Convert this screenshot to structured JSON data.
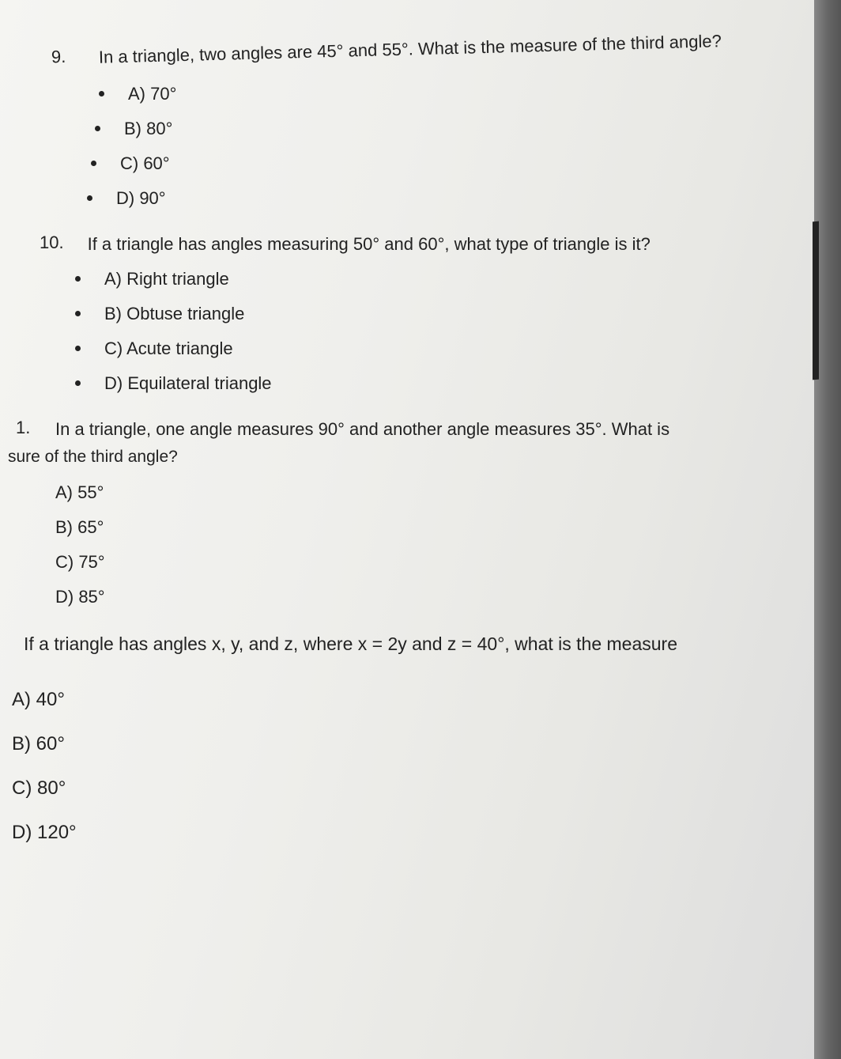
{
  "questions": {
    "q9": {
      "number": "9.",
      "text": "In a triangle, two angles are 45° and 55°. What is the measure of the third angle?",
      "options": {
        "a": "A) 70°",
        "b": "B) 80°",
        "c": "C) 60°",
        "d": "D) 90°"
      }
    },
    "q10": {
      "number": "10.",
      "text": "If a triangle has angles measuring 50° and 60°, what type of triangle is it?",
      "options": {
        "a": "A) Right triangle",
        "b": "B) Obtuse triangle",
        "c": "C) Acute triangle",
        "d": "D) Equilateral triangle"
      }
    },
    "q11": {
      "number": "1.",
      "text": "In a triangle, one angle measures 90° and another angle measures 35°. What is",
      "subtext": "sure of the third angle?",
      "options": {
        "a": "A) 55°",
        "b": "B) 65°",
        "c": "C) 75°",
        "d": "D) 85°"
      }
    },
    "q12": {
      "text": "If a triangle has angles x, y, and z, where x = 2y and z = 40°, what is the measure",
      "options": {
        "a": "A) 40°",
        "b": "B) 60°",
        "c": "C) 80°",
        "d": "D) 120°"
      }
    }
  },
  "colors": {
    "text": "#222222",
    "paper_light": "#f5f5f2",
    "paper_dark": "#dddddd",
    "background": "#a8a8a8"
  },
  "typography": {
    "font_family": "Arial, Helvetica, sans-serif",
    "question_fontsize": 22,
    "option_fontsize": 22
  }
}
